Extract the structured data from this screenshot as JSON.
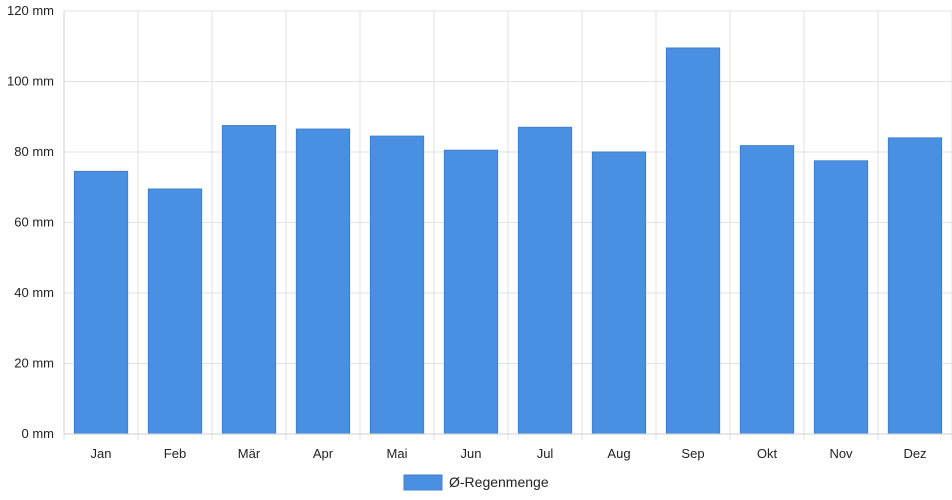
{
  "chart_data": {
    "type": "bar",
    "categories": [
      "Jan",
      "Feb",
      "Mär",
      "Apr",
      "Mai",
      "Jun",
      "Jul",
      "Aug",
      "Sep",
      "Okt",
      "Nov",
      "Dez"
    ],
    "series": [
      {
        "name": "Ø-Regenmenge",
        "color": "#4a90e2",
        "values": [
          74.5,
          69.5,
          87.5,
          86.5,
          84.5,
          80.5,
          87.0,
          80.0,
          109.5,
          81.8,
          77.5,
          84.0
        ]
      }
    ],
    "ylim": [
      0,
      120
    ],
    "yticks": [
      0,
      20,
      40,
      60,
      80,
      100,
      120
    ],
    "y_unit": "mm",
    "grid": true,
    "legend_position": "bottom-center"
  }
}
